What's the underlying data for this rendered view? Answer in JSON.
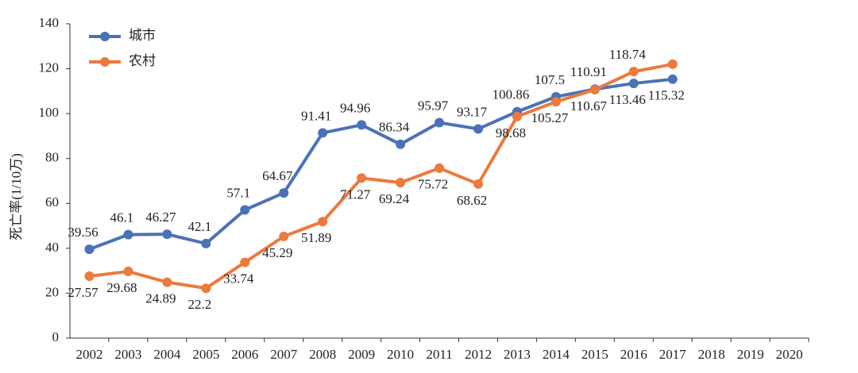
{
  "chart_data": {
    "type": "line",
    "y_label": "死亡率(1/10万)",
    "categories": [
      "2002",
      "2003",
      "2004",
      "2005",
      "2006",
      "2007",
      "2008",
      "2009",
      "2010",
      "2011",
      "2012",
      "2013",
      "2014",
      "2015",
      "2016",
      "2017",
      "2018",
      "2019",
      "2020"
    ],
    "series": [
      {
        "name": "城市",
        "color": "#4a72b8",
        "values": [
          39.56,
          46.1,
          46.27,
          42.1,
          57.1,
          64.67,
          91.41,
          94.96,
          86.34,
          95.97,
          93.17,
          100.86,
          107.5,
          110.91,
          113.46,
          115.32,
          null,
          null,
          null
        ],
        "value_labels": [
          "39.56",
          "46.1",
          "46.27",
          "42.1",
          "57.1",
          "64.67",
          "91.41",
          "94.96",
          "86.34",
          "95.97",
          "93.17",
          "100.86",
          "107.5",
          "110.91",
          "113.46",
          "115.32",
          null,
          null,
          null
        ]
      },
      {
        "name": "农村",
        "color": "#ec7a3c",
        "values": [
          27.57,
          29.68,
          24.89,
          22.2,
          33.74,
          45.29,
          51.89,
          71.27,
          69.24,
          75.72,
          68.62,
          98.68,
          105.27,
          110.67,
          118.74,
          122,
          null,
          null,
          null
        ],
        "value_labels": [
          "27.57",
          "29.68",
          "24.89",
          "22.2",
          "33.74",
          "45.29",
          "51.89",
          "71.27",
          "69.24",
          "75.72",
          "68.62",
          "98.68",
          "105.27",
          "110.67",
          "118.74",
          null,
          null,
          null,
          null
        ]
      }
    ],
    "ylim": [
      0,
      140
    ],
    "yticks": [
      0,
      20,
      40,
      60,
      80,
      100,
      120,
      140
    ],
    "grid": false,
    "legend": "top-left"
  }
}
